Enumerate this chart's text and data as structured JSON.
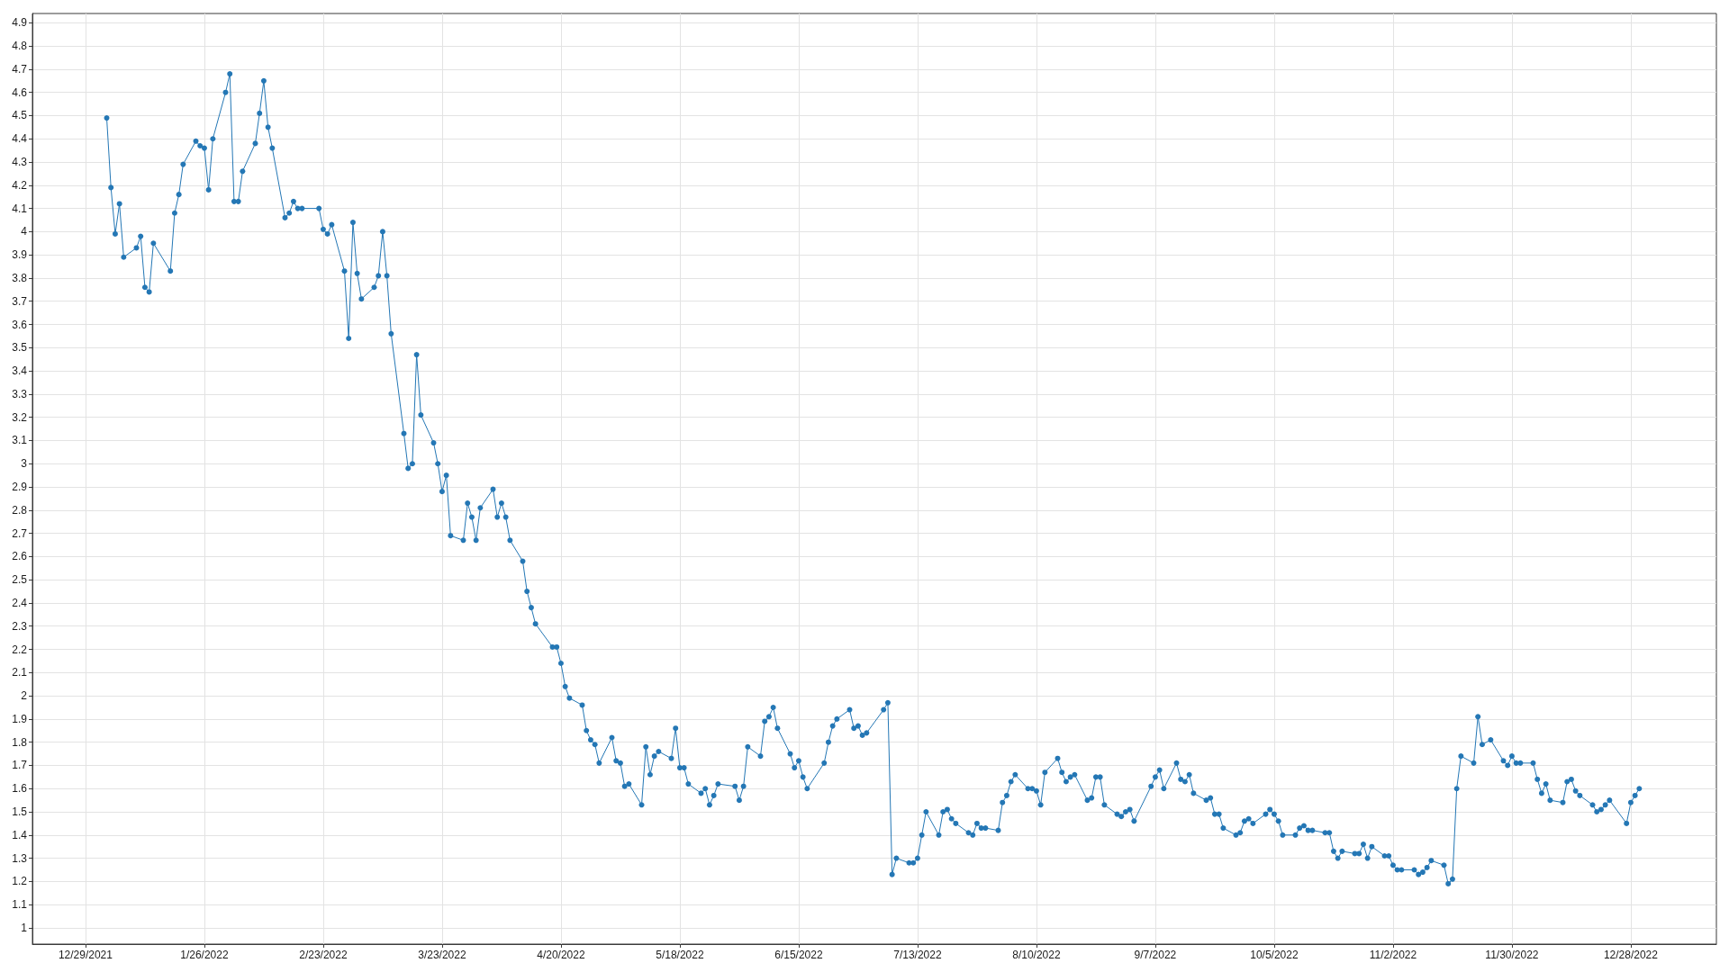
{
  "chart_data": {
    "type": "line",
    "x": [
      "2022-01-03",
      "2022-01-04",
      "2022-01-05",
      "2022-01-06",
      "2022-01-07",
      "2022-01-10",
      "2022-01-11",
      "2022-01-12",
      "2022-01-13",
      "2022-01-14",
      "2022-01-18",
      "2022-01-19",
      "2022-01-20",
      "2022-01-21",
      "2022-01-24",
      "2022-01-25",
      "2022-01-26",
      "2022-01-27",
      "2022-01-28",
      "2022-01-31",
      "2022-02-01",
      "2022-02-02",
      "2022-02-03",
      "2022-02-04",
      "2022-02-07",
      "2022-02-08",
      "2022-02-09",
      "2022-02-10",
      "2022-02-11",
      "2022-02-14",
      "2022-02-15",
      "2022-02-16",
      "2022-02-17",
      "2022-02-18",
      "2022-02-22",
      "2022-02-23",
      "2022-02-24",
      "2022-02-25",
      "2022-02-28",
      "2022-03-01",
      "2022-03-02",
      "2022-03-03",
      "2022-03-04",
      "2022-03-07",
      "2022-03-08",
      "2022-03-09",
      "2022-03-10",
      "2022-03-11",
      "2022-03-14",
      "2022-03-15",
      "2022-03-16",
      "2022-03-17",
      "2022-03-18",
      "2022-03-21",
      "2022-03-22",
      "2022-03-23",
      "2022-03-24",
      "2022-03-25",
      "2022-03-28",
      "2022-03-29",
      "2022-03-30",
      "2022-03-31",
      "2022-04-01",
      "2022-04-04",
      "2022-04-05",
      "2022-04-06",
      "2022-04-07",
      "2022-04-08",
      "2022-04-11",
      "2022-04-12",
      "2022-04-13",
      "2022-04-14",
      "2022-04-18",
      "2022-04-19",
      "2022-04-20",
      "2022-04-21",
      "2022-04-22",
      "2022-04-25",
      "2022-04-26",
      "2022-04-27",
      "2022-04-28",
      "2022-04-29",
      "2022-05-02",
      "2022-05-03",
      "2022-05-04",
      "2022-05-05",
      "2022-05-06",
      "2022-05-09",
      "2022-05-10",
      "2022-05-11",
      "2022-05-12",
      "2022-05-13",
      "2022-05-16",
      "2022-05-17",
      "2022-05-18",
      "2022-05-19",
      "2022-05-20",
      "2022-05-23",
      "2022-05-24",
      "2022-05-25",
      "2022-05-26",
      "2022-05-27",
      "2022-05-31",
      "2022-06-01",
      "2022-06-02",
      "2022-06-03",
      "2022-06-06",
      "2022-06-07",
      "2022-06-08",
      "2022-06-09",
      "2022-06-10",
      "2022-06-13",
      "2022-06-14",
      "2022-06-15",
      "2022-06-16",
      "2022-06-17",
      "2022-06-21",
      "2022-06-22",
      "2022-06-23",
      "2022-06-24",
      "2022-06-27",
      "2022-06-28",
      "2022-06-29",
      "2022-06-30",
      "2022-07-01",
      "2022-07-05",
      "2022-07-06",
      "2022-07-07",
      "2022-07-08",
      "2022-07-11",
      "2022-07-12",
      "2022-07-13",
      "2022-07-14",
      "2022-07-15",
      "2022-07-18",
      "2022-07-19",
      "2022-07-20",
      "2022-07-21",
      "2022-07-22",
      "2022-07-25",
      "2022-07-26",
      "2022-07-27",
      "2022-07-28",
      "2022-07-29",
      "2022-08-01",
      "2022-08-02",
      "2022-08-03",
      "2022-08-04",
      "2022-08-05",
      "2022-08-08",
      "2022-08-09",
      "2022-08-10",
      "2022-08-11",
      "2022-08-12",
      "2022-08-15",
      "2022-08-16",
      "2022-08-17",
      "2022-08-18",
      "2022-08-19",
      "2022-08-22",
      "2022-08-23",
      "2022-08-24",
      "2022-08-25",
      "2022-08-26",
      "2022-08-29",
      "2022-08-30",
      "2022-08-31",
      "2022-09-01",
      "2022-09-02",
      "2022-09-06",
      "2022-09-07",
      "2022-09-08",
      "2022-09-09",
      "2022-09-12",
      "2022-09-13",
      "2022-09-14",
      "2022-09-15",
      "2022-09-16",
      "2022-09-19",
      "2022-09-20",
      "2022-09-21",
      "2022-09-22",
      "2022-09-23",
      "2022-09-26",
      "2022-09-27",
      "2022-09-28",
      "2022-09-29",
      "2022-09-30",
      "2022-10-03",
      "2022-10-04",
      "2022-10-05",
      "2022-10-06",
      "2022-10-07",
      "2022-10-10",
      "2022-10-11",
      "2022-10-12",
      "2022-10-13",
      "2022-10-14",
      "2022-10-17",
      "2022-10-18",
      "2022-10-19",
      "2022-10-20",
      "2022-10-21",
      "2022-10-24",
      "2022-10-25",
      "2022-10-26",
      "2022-10-27",
      "2022-10-28",
      "2022-10-31",
      "2022-11-01",
      "2022-11-02",
      "2022-11-03",
      "2022-11-04",
      "2022-11-07",
      "2022-11-08",
      "2022-11-09",
      "2022-11-10",
      "2022-11-11",
      "2022-11-14",
      "2022-11-15",
      "2022-11-16",
      "2022-11-17",
      "2022-11-18",
      "2022-11-21",
      "2022-11-22",
      "2022-11-23",
      "2022-11-25",
      "2022-11-28",
      "2022-11-29",
      "2022-11-30",
      "2022-12-01",
      "2022-12-02",
      "2022-12-05",
      "2022-12-06",
      "2022-12-07",
      "2022-12-08",
      "2022-12-09",
      "2022-12-12",
      "2022-12-13",
      "2022-12-14",
      "2022-12-15",
      "2022-12-16",
      "2022-12-19",
      "2022-12-20",
      "2022-12-21",
      "2022-12-22",
      "2022-12-23",
      "2022-12-27",
      "2022-12-28",
      "2022-12-29",
      "2022-12-30"
    ],
    "values": [
      4.49,
      4.19,
      3.99,
      4.12,
      3.89,
      3.93,
      3.98,
      3.76,
      3.74,
      3.95,
      3.83,
      4.08,
      4.16,
      4.29,
      4.39,
      4.37,
      4.36,
      4.18,
      4.4,
      4.6,
      4.68,
      4.13,
      4.13,
      4.26,
      4.38,
      4.51,
      4.65,
      4.45,
      4.36,
      4.06,
      4.08,
      4.13,
      4.1,
      4.1,
      4.1,
      4.01,
      3.99,
      4.03,
      3.83,
      3.54,
      4.04,
      3.82,
      3.71,
      3.76,
      3.81,
      4.0,
      3.81,
      3.56,
      3.13,
      2.98,
      3.0,
      3.47,
      3.21,
      3.09,
      3.0,
      2.88,
      2.95,
      2.69,
      2.67,
      2.83,
      2.77,
      2.67,
      2.81,
      2.89,
      2.77,
      2.83,
      2.77,
      2.67,
      2.58,
      2.45,
      2.38,
      2.31,
      2.21,
      2.21,
      2.14,
      2.04,
      1.99,
      1.96,
      1.85,
      1.81,
      1.79,
      1.71,
      1.82,
      1.72,
      1.71,
      1.61,
      1.62,
      1.53,
      1.78,
      1.66,
      1.74,
      1.76,
      1.73,
      1.86,
      1.69,
      1.69,
      1.62,
      1.58,
      1.6,
      1.53,
      1.57,
      1.62,
      1.61,
      1.55,
      1.61,
      1.78,
      1.74,
      1.89,
      1.91,
      1.95,
      1.86,
      1.75,
      1.69,
      1.72,
      1.65,
      1.6,
      1.71,
      1.8,
      1.87,
      1.9,
      1.94,
      1.86,
      1.87,
      1.83,
      1.84,
      1.94,
      1.97,
      1.23,
      1.3,
      1.28,
      1.28,
      1.3,
      1.4,
      1.5,
      1.4,
      1.5,
      1.51,
      1.47,
      1.45,
      1.41,
      1.4,
      1.45,
      1.43,
      1.43,
      1.42,
      1.54,
      1.57,
      1.63,
      1.66,
      1.6,
      1.6,
      1.59,
      1.53,
      1.67,
      1.73,
      1.67,
      1.63,
      1.65,
      1.66,
      1.55,
      1.56,
      1.65,
      1.65,
      1.53,
      1.49,
      1.48,
      1.5,
      1.51,
      1.46,
      1.61,
      1.65,
      1.68,
      1.6,
      1.71,
      1.64,
      1.63,
      1.66,
      1.58,
      1.55,
      1.56,
      1.49,
      1.49,
      1.43,
      1.4,
      1.41,
      1.46,
      1.47,
      1.45,
      1.49,
      1.51,
      1.49,
      1.46,
      1.4,
      1.4,
      1.43,
      1.44,
      1.42,
      1.42,
      1.41,
      1.41,
      1.33,
      1.3,
      1.33,
      1.32,
      1.32,
      1.36,
      1.3,
      1.35,
      1.31,
      1.31,
      1.27,
      1.25,
      1.25,
      1.25,
      1.23,
      1.24,
      1.26,
      1.29,
      1.27,
      1.19,
      1.21,
      1.6,
      1.74,
      1.71,
      1.91,
      1.79,
      1.81,
      1.72,
      1.7,
      1.74,
      1.71,
      1.71,
      1.71,
      1.64,
      1.58,
      1.62,
      1.55,
      1.54,
      1.63,
      1.64,
      1.59,
      1.57,
      1.53,
      1.5,
      1.51,
      1.53,
      1.55,
      1.45,
      1.54,
      1.57,
      1.6
    ],
    "color": "#2477b5",
    "xlim": [
      "2021-12-16T12:00",
      "2023-01-17T04:00"
    ],
    "xticks": [
      {
        "value": "2021-12-29",
        "label": "12/29/2021"
      },
      {
        "value": "2022-01-26",
        "label": "1/26/2022"
      },
      {
        "value": "2022-02-23",
        "label": "2/23/2022"
      },
      {
        "value": "2022-03-23",
        "label": "3/23/2022"
      },
      {
        "value": "2022-04-20",
        "label": "4/20/2022"
      },
      {
        "value": "2022-05-18",
        "label": "5/18/2022"
      },
      {
        "value": "2022-06-15",
        "label": "6/15/2022"
      },
      {
        "value": "2022-07-13",
        "label": "7/13/2022"
      },
      {
        "value": "2022-08-10",
        "label": "8/10/2022"
      },
      {
        "value": "2022-09-07",
        "label": "9/7/2022"
      },
      {
        "value": "2022-10-05",
        "label": "10/5/2022"
      },
      {
        "value": "2022-11-02",
        "label": "11/2/2022"
      },
      {
        "value": "2022-11-30",
        "label": "11/30/2022"
      },
      {
        "value": "2022-12-28",
        "label": "12/28/2022"
      }
    ],
    "ylim": [
      0.93,
      4.94
    ],
    "yticks": [
      1,
      1.1,
      1.2,
      1.3,
      1.4,
      1.5,
      1.6,
      1.7,
      1.8,
      1.9,
      2,
      2.1,
      2.2,
      2.3,
      2.4,
      2.5,
      2.6,
      2.7,
      2.8,
      2.9,
      3,
      3.1,
      3.2,
      3.3,
      3.4,
      3.5,
      3.6,
      3.7,
      3.8,
      3.9,
      4,
      4.1,
      4.2,
      4.3,
      4.4,
      4.5,
      4.6,
      4.7,
      4.8,
      4.9
    ],
    "grid": true,
    "marker": "circle",
    "line_style": "solid"
  }
}
